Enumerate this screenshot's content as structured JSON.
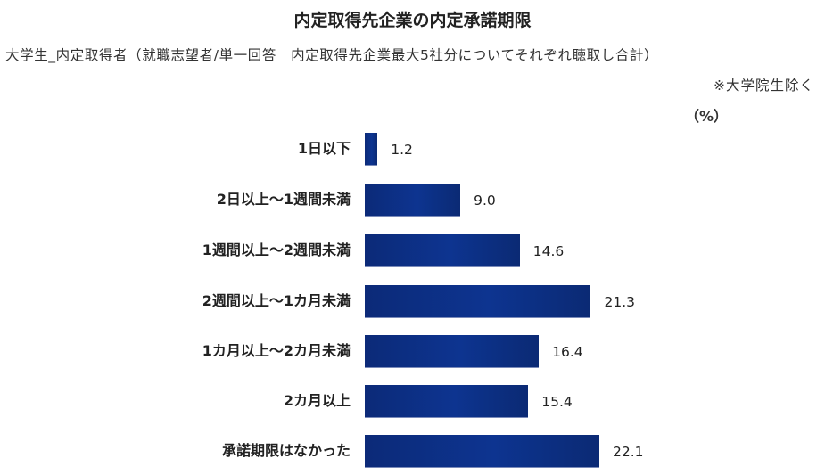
{
  "chart_data": {
    "type": "bar",
    "orientation": "horizontal",
    "title": "内定取得先企業の内定承諾期限",
    "subtitle": "大学生_内定取得者（就職志望者/単一回答　内定取得先企業最大5社分についてそれぞれ聴取し合計）",
    "note": "※大学院生除く",
    "unit": "（%）",
    "xlabel": "",
    "ylabel": "",
    "grid": false,
    "legend": null,
    "categories": [
      "1日以下",
      "2日以上〜1週間未満",
      "1週間以上〜2週間未満",
      "2週間以上〜1カ月未満",
      "1カ月以上〜2カ月未満",
      "2カ月以上",
      "承諾期限はなかった"
    ],
    "values": [
      1.2,
      9.0,
      14.6,
      21.3,
      16.4,
      15.4,
      22.1
    ],
    "value_labels": [
      "1.2",
      "9.0",
      "14.6",
      "21.3",
      "16.4",
      "15.4",
      "22.1"
    ],
    "bar_color": "#0d3490"
  }
}
